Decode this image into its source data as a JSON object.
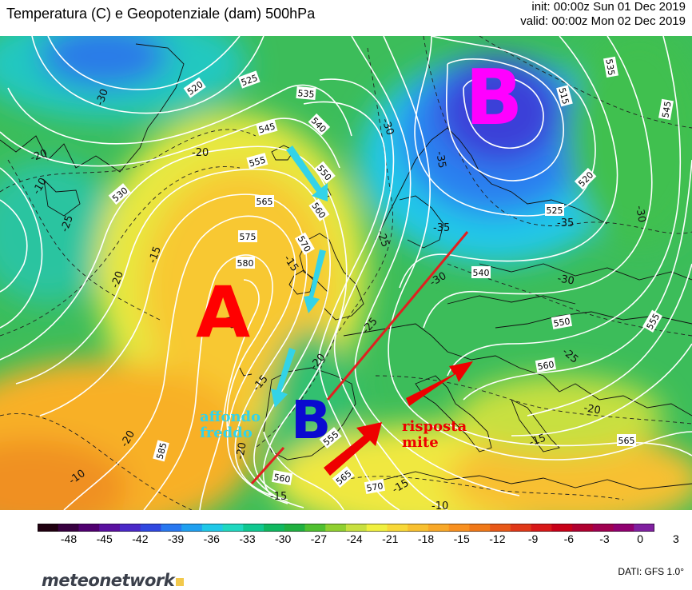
{
  "title": "Temperatura (C) e Geopotenziale (dam) 500hPa",
  "init_line": "init: 00:00z Sun 01 Dec 2019",
  "valid_line": "valid: 00:00z Mon 02 Dec 2019",
  "source": "DATI: GFS 1.0°",
  "logo": "meteonetwork",
  "colors": {
    "high_label": "#ff0000",
    "low_label_iberia": "#0a0ad0",
    "low_label_scandinavia": "#ff00ff",
    "cold_arrows": "#33d3e8",
    "warm_arrows": "#ee0000",
    "contours": "#ffffff"
  },
  "annotations": {
    "high": "A",
    "low_iberia": "B",
    "low_scandinavia": "B",
    "cold_text_1": "affondo",
    "cold_text_2": "freddo",
    "warm_text_1": "risposta",
    "warm_text_2": "mite"
  },
  "colorbar": {
    "ticks": [
      "-48",
      "-45",
      "-42",
      "-39",
      "-36",
      "-33",
      "-30",
      "-27",
      "-24",
      "-21",
      "-18",
      "-15",
      "-12",
      "-9",
      "-6",
      "-3",
      "0",
      "3"
    ],
    "colors": [
      "#200010",
      "#380040",
      "#500070",
      "#5a10a0",
      "#4a28c8",
      "#3048e0",
      "#2878f0",
      "#20a0f0",
      "#20c8e8",
      "#20d8c0",
      "#10c890",
      "#10b860",
      "#20b040",
      "#50c030",
      "#90d030",
      "#c8e040",
      "#f0f040",
      "#f8d838",
      "#f8c030",
      "#f8a828",
      "#f89020",
      "#f07818",
      "#e85818",
      "#e03818",
      "#d81818",
      "#c80018",
      "#b00030",
      "#a00050",
      "#900070",
      "#8020a0"
    ]
  },
  "contour_labels": [
    "520",
    "525",
    "535",
    "545",
    "540",
    "550",
    "555",
    "560",
    "565",
    "570",
    "575",
    "580",
    "585",
    "530",
    "515",
    "535",
    "545",
    "555",
    "540",
    "550",
    "560",
    "565",
    "555",
    "560",
    "565",
    "570",
    "525",
    "520"
  ],
  "temp_labels": [
    "-30",
    "-35",
    "-35",
    "-30",
    "-25",
    "-30",
    "-25",
    "-20",
    "-15",
    "-15",
    "-10",
    "-20",
    "-25",
    "-30",
    "-35",
    "-30",
    "-25",
    "-20",
    "-15",
    "-10",
    "-20",
    "-15",
    "-15",
    "-20",
    "-20",
    "-15",
    "-10",
    "-20"
  ]
}
